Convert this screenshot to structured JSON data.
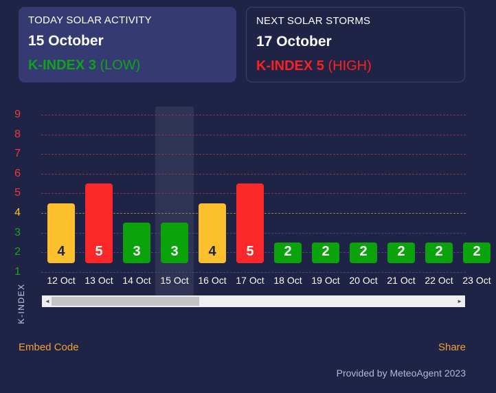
{
  "cards": {
    "today": {
      "title": "TODAY SOLAR ACTIVITY",
      "date": "15 October",
      "kindex": "K-INDEX 3",
      "level": "(LOW)"
    },
    "next": {
      "title": "NEXT SOLAR STORMS",
      "date": "17 October",
      "kindex": "K-INDEX 5",
      "level": "(HIGH)"
    }
  },
  "chart_data": {
    "type": "bar",
    "categories": [
      "12 Oct",
      "13 Oct",
      "14 Oct",
      "15 Oct",
      "16 Oct",
      "17 Oct",
      "18 Oct",
      "19 Oct",
      "20 Oct",
      "21 Oct",
      "22 Oct",
      "23 Oct"
    ],
    "values": [
      4,
      5,
      3,
      3,
      4,
      5,
      2,
      2,
      2,
      2,
      2,
      2
    ],
    "ylabel": "K-INDEX",
    "yticks": [
      1,
      2,
      3,
      4,
      5,
      6,
      7,
      8,
      9
    ],
    "ylim": [
      0,
      9
    ],
    "grid": "dashed horizontal",
    "legend": "none",
    "highlighted_category": "15 Oct",
    "severity_rule": "value <= 3 green (low), value == 4 yellow (moderate), value >= 5 red (high)",
    "colors": {
      "green": "#0ba30b",
      "yellow": "#fcc02c",
      "red": "#fa2828"
    }
  },
  "scrollbar": {
    "left_arrow": "◄",
    "right_arrow": "►"
  },
  "footer": {
    "embed_label": "Embed Code",
    "share_label": "Share",
    "credit": "Provided by MeteoAgent 2023"
  },
  "colors": {
    "background": "#1f2346",
    "card_background": "#353b72",
    "accent_orange": "#efa335",
    "text_green": "#0fa319",
    "text_red": "#f92121",
    "tick_red": "#ee3c3c",
    "tick_yellow": "#fcc22d",
    "tick_green": "#1ca51c"
  }
}
